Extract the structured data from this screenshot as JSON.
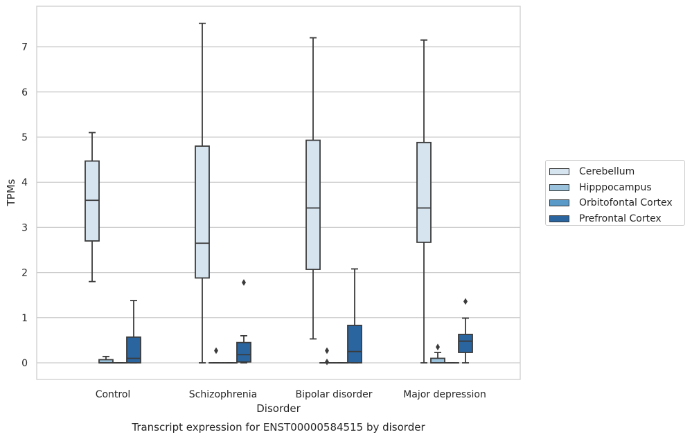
{
  "chart_data": {
    "type": "box",
    "title": "Transcript expression for ENST00000584515 by disorder",
    "xlabel": "Disorder",
    "ylabel": "TPMs",
    "categories": [
      "Control",
      "Schizophrenia",
      "Bipolar disorder",
      "Major depression"
    ],
    "ylim": [
      -0.36,
      7.9
    ],
    "yticks": [
      0,
      1,
      2,
      3,
      4,
      5,
      6,
      7
    ],
    "grid": "horizontal",
    "legend_position": "right",
    "series": [
      {
        "name": "Cerebellum",
        "color": "#d6e4f0",
        "boxes": [
          {
            "min": 1.8,
            "q1": 2.7,
            "median": 3.6,
            "q3": 4.47,
            "max": 5.1,
            "outliers": []
          },
          {
            "min": 0.0,
            "q1": 1.88,
            "median": 2.65,
            "q3": 4.8,
            "max": 7.52,
            "outliers": []
          },
          {
            "min": 0.53,
            "q1": 2.07,
            "median": 3.43,
            "q3": 4.93,
            "max": 7.2,
            "outliers": []
          },
          {
            "min": 0.0,
            "q1": 2.67,
            "median": 3.43,
            "q3": 4.88,
            "max": 7.15,
            "outliers": []
          }
        ]
      },
      {
        "name": "Hipppocampus",
        "color": "#9ac2dc",
        "boxes": [
          {
            "min": 0.0,
            "q1": 0.0,
            "median": 0.0,
            "q3": 0.07,
            "max": 0.14,
            "outliers": []
          },
          {
            "min": 0.0,
            "q1": 0.0,
            "median": 0.0,
            "q3": 0.0,
            "max": 0.0,
            "outliers": [
              0.27
            ]
          },
          {
            "min": 0.0,
            "q1": 0.0,
            "median": 0.0,
            "q3": 0.0,
            "max": 0.0,
            "outliers": [
              0.27,
              0.02
            ]
          },
          {
            "min": 0.0,
            "q1": 0.0,
            "median": 0.0,
            "q3": 0.1,
            "max": 0.23,
            "outliers": [
              0.35
            ]
          }
        ]
      },
      {
        "name": "Orbitofontal Cortex",
        "color": "#5a9ac8",
        "boxes": [
          {
            "min": 0.0,
            "q1": 0.0,
            "median": 0.0,
            "q3": 0.0,
            "max": 0.0,
            "outliers": []
          },
          {
            "min": 0.0,
            "q1": 0.0,
            "median": 0.0,
            "q3": 0.0,
            "max": 0.0,
            "outliers": []
          },
          {
            "min": 0.0,
            "q1": 0.0,
            "median": 0.0,
            "q3": 0.0,
            "max": 0.0,
            "outliers": []
          },
          {
            "min": 0.0,
            "q1": 0.0,
            "median": 0.0,
            "q3": 0.0,
            "max": 0.0,
            "outliers": []
          }
        ]
      },
      {
        "name": "Prefrontal Cortex",
        "color": "#2a65a0",
        "boxes": [
          {
            "min": 0.0,
            "q1": 0.0,
            "median": 0.1,
            "q3": 0.57,
            "max": 1.38,
            "outliers": []
          },
          {
            "min": 0.0,
            "q1": 0.02,
            "median": 0.18,
            "q3": 0.45,
            "max": 0.6,
            "outliers": [
              1.78
            ]
          },
          {
            "min": 0.0,
            "q1": 0.0,
            "median": 0.25,
            "q3": 0.83,
            "max": 2.08,
            "outliers": []
          },
          {
            "min": 0.0,
            "q1": 0.23,
            "median": 0.48,
            "q3": 0.63,
            "max": 0.99,
            "outliers": [
              1.36
            ]
          }
        ]
      }
    ]
  }
}
